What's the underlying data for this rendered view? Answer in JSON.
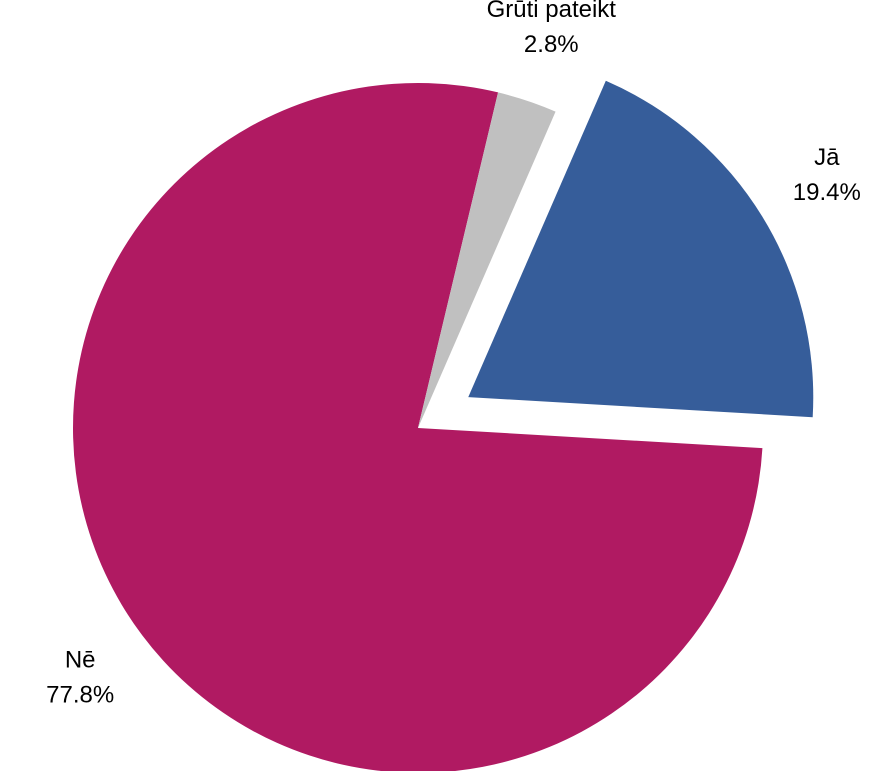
{
  "chart_data": {
    "type": "pie",
    "categories": [
      "Jā",
      "Nē",
      "Grūti pateikt"
    ],
    "values": [
      19.4,
      77.8,
      2.8
    ],
    "value_labels": [
      "19.4%",
      "77.8%",
      "2.8%"
    ],
    "colors": [
      "#365d9a",
      "#b01a62",
      "#c0c0c0"
    ],
    "exploded": "Jā"
  }
}
